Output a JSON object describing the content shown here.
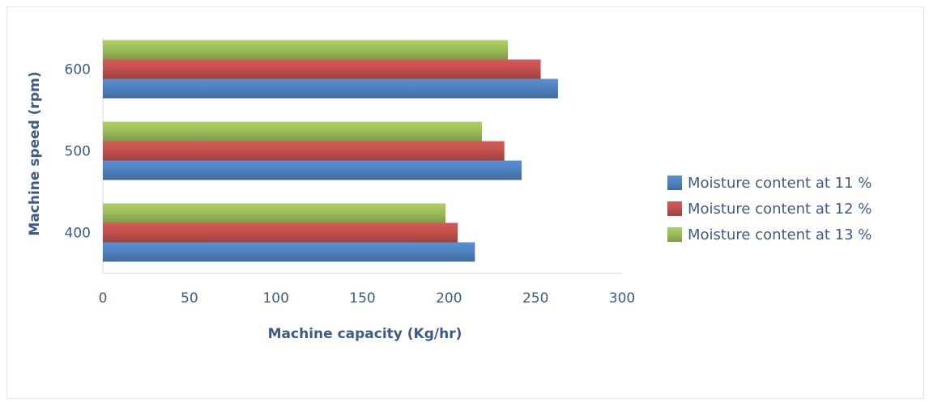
{
  "chart_data": {
    "type": "bar",
    "orientation": "horizontal",
    "title": "",
    "xlabel": "Machine capacity (Kg/hr)",
    "ylabel": "Machine speed (rpm)",
    "categories": [
      "400",
      "500",
      "600"
    ],
    "xlim": [
      0,
      300
    ],
    "xticks": [
      0,
      50,
      100,
      150,
      200,
      250,
      300
    ],
    "grid": false,
    "legend_position": "right",
    "series": [
      {
        "name": "Moisture content at 11 %",
        "color": "#4f81bd",
        "values": [
          215,
          242,
          263
        ]
      },
      {
        "name": "Moisture content at 12 %",
        "color": "#c0504d",
        "values": [
          205,
          232,
          253
        ]
      },
      {
        "name": "Moisture content at 13 %",
        "color": "#9bbb59",
        "values": [
          198,
          219,
          234
        ]
      }
    ]
  }
}
